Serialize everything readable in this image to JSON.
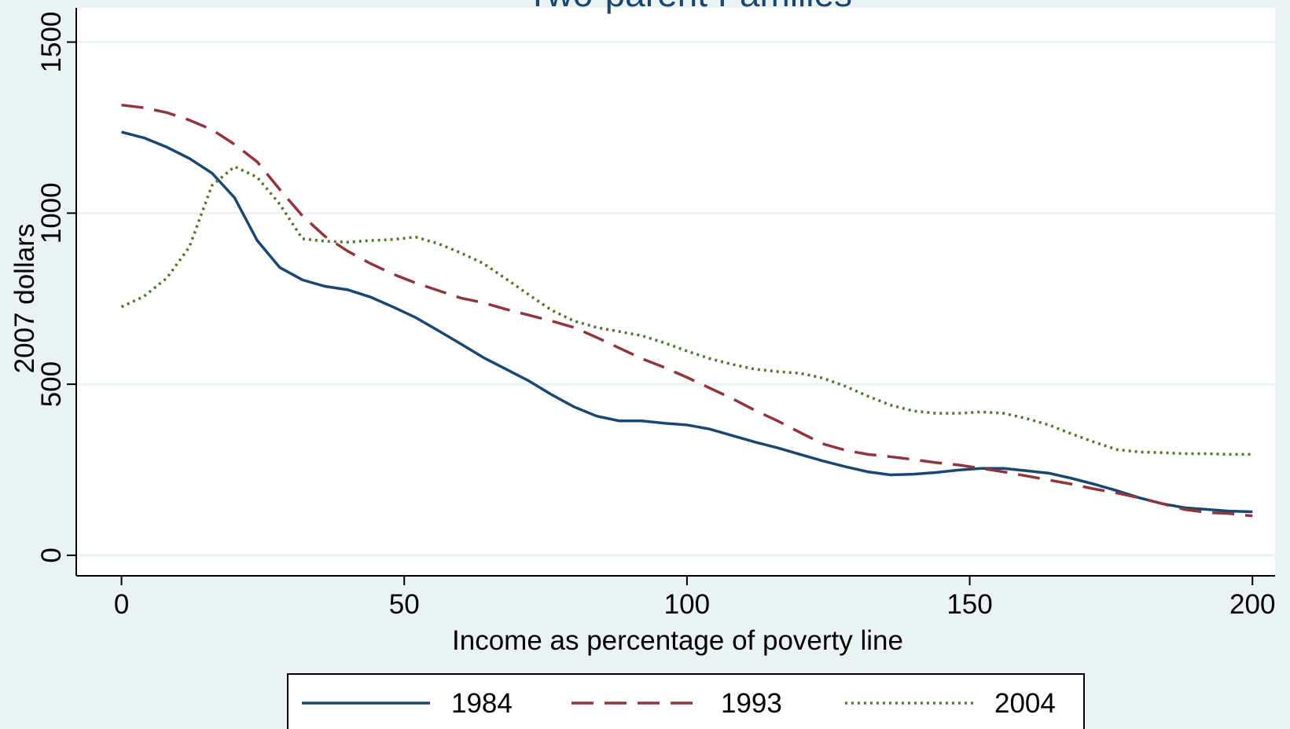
{
  "chart_data": {
    "type": "line",
    "title": "Two-parent Families",
    "x_label": "Income as percentage of poverty line",
    "y_label": "2007 dollars",
    "x": [
      0,
      4,
      8,
      12,
      16,
      20,
      24,
      28,
      32,
      36,
      40,
      44,
      48,
      52,
      56,
      60,
      64,
      68,
      72,
      76,
      80,
      84,
      88,
      92,
      96,
      100,
      104,
      108,
      112,
      116,
      120,
      124,
      128,
      132,
      136,
      140,
      144,
      148,
      152,
      156,
      160,
      164,
      168,
      172,
      176,
      180,
      184,
      188,
      192,
      196,
      200
    ],
    "series": [
      {
        "name": "1984",
        "color": "#1a476f",
        "dash": "solid",
        "values": [
          1237,
          1220,
          1193,
          1160,
          1117,
          1045,
          920,
          841,
          805,
          786,
          776,
          755,
          726,
          695,
          657,
          618,
          578,
          544,
          510,
          470,
          434,
          407,
          393,
          393,
          386,
          381,
          369,
          350,
          331,
          314,
          295,
          276,
          259,
          244,
          235,
          237,
          242,
          249,
          254,
          254,
          247,
          240,
          225,
          208,
          189,
          168,
          151,
          139,
          134,
          129,
          127
        ]
      },
      {
        "name": "1993",
        "color": "#90353b",
        "dash": "dashed",
        "values": [
          1316,
          1308,
          1294,
          1272,
          1244,
          1201,
          1150,
          1069,
          992,
          932,
          889,
          853,
          822,
          796,
          774,
          752,
          738,
          719,
          702,
          685,
          666,
          637,
          606,
          575,
          549,
          520,
          489,
          458,
          424,
          393,
          359,
          326,
          307,
          295,
          288,
          280,
          271,
          264,
          254,
          244,
          232,
          220,
          208,
          194,
          182,
          168,
          151,
          134,
          125,
          122,
          115
        ]
      },
      {
        "name": "2004",
        "color": "#55752f",
        "dash": "dotted",
        "values": [
          726,
          757,
          810,
          901,
          1081,
          1136,
          1105,
          1026,
          925,
          918,
          915,
          920,
          923,
          930,
          911,
          884,
          853,
          808,
          762,
          717,
          685,
          666,
          654,
          642,
          621,
          597,
          575,
          558,
          544,
          537,
          532,
          518,
          494,
          465,
          439,
          422,
          415,
          415,
          419,
          415,
          400,
          381,
          355,
          331,
          309,
          302,
          300,
          297,
          297,
          295,
          295
        ]
      }
    ],
    "xlim": [
      -8,
      204
    ],
    "ylim": [
      -60,
      1600
    ],
    "xticks": [
      0,
      50,
      100,
      150,
      200
    ],
    "yticks": [
      0,
      500,
      1000,
      1500
    ],
    "grid": true,
    "legend_position": "bottom"
  }
}
